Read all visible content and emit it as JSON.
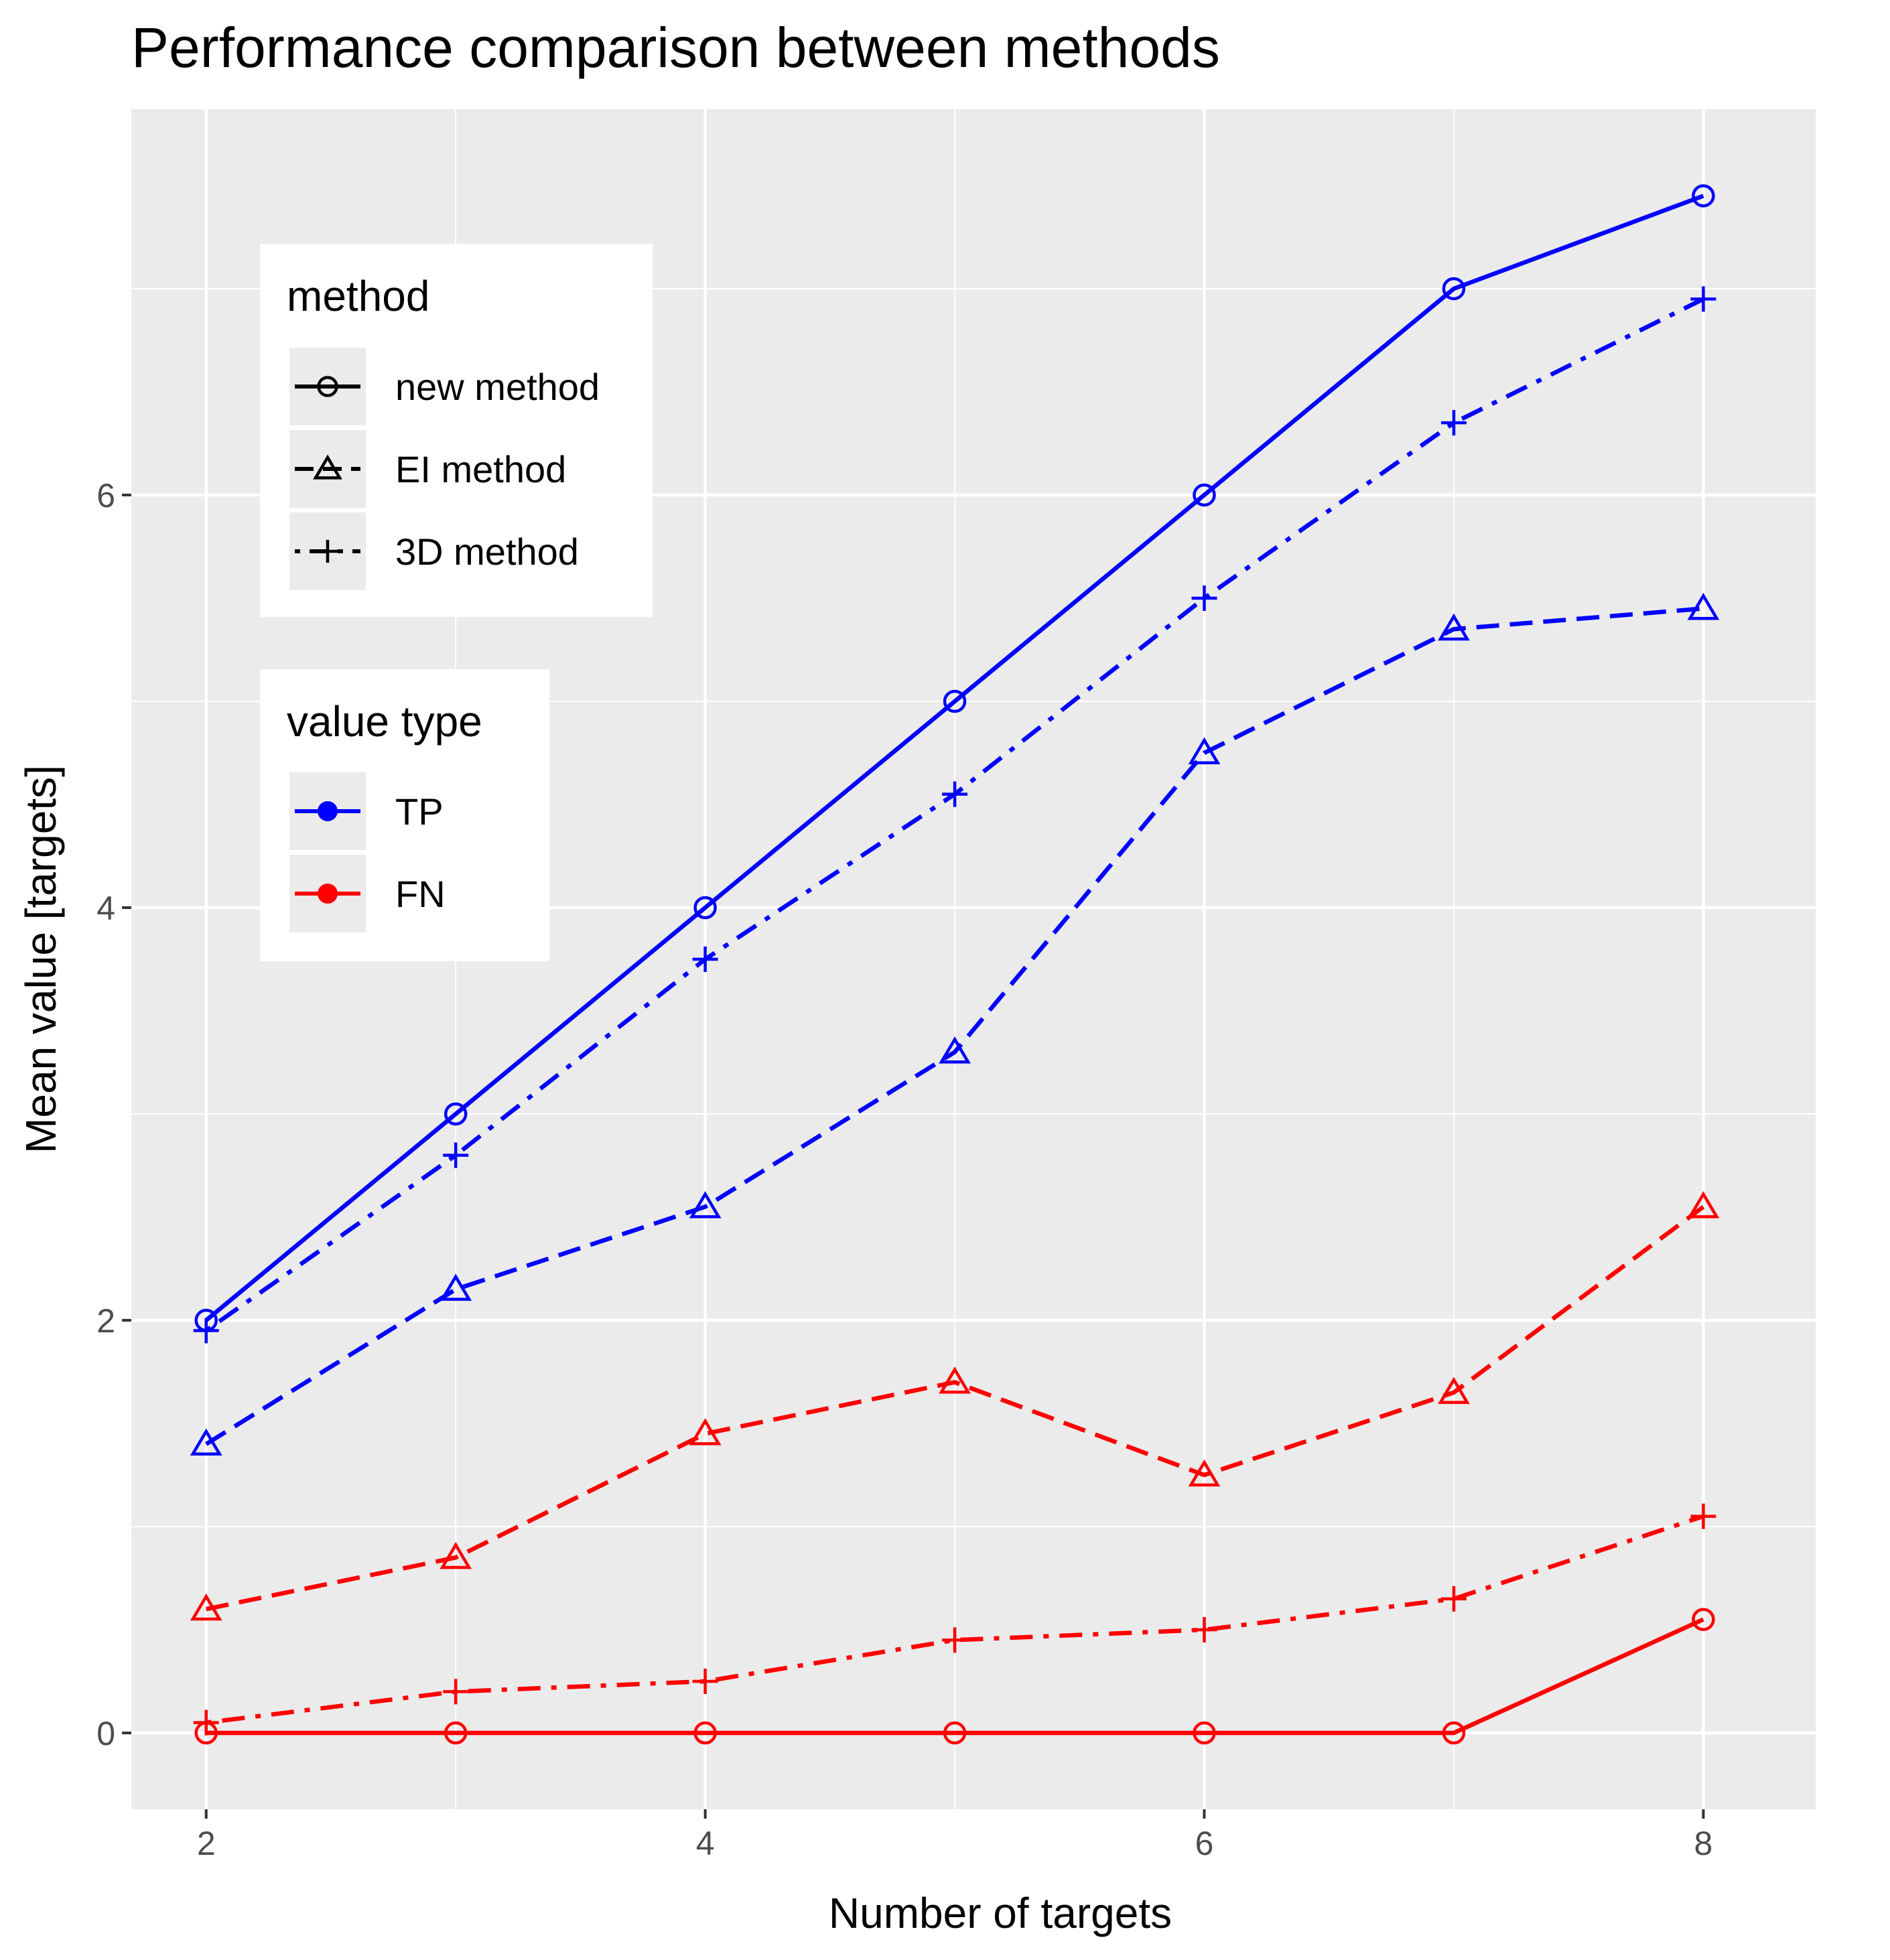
{
  "chart_data": {
    "type": "line",
    "title": "Performance comparison between methods",
    "xlabel": "Number of targets",
    "ylabel": "Mean value [targets]",
    "x": [
      2,
      3,
      4,
      5,
      6,
      7,
      8
    ],
    "xlim": [
      1.7,
      8.45
    ],
    "ylim": [
      -0.37,
      7.87
    ],
    "xticks": [
      2,
      4,
      6,
      8
    ],
    "yticks": [
      0,
      2,
      4,
      6
    ],
    "grid": true,
    "series": [
      {
        "name": "new method — TP",
        "method": "new method",
        "value_type": "TP",
        "values": [
          2.0,
          3.0,
          4.0,
          5.0,
          6.0,
          7.0,
          7.45
        ]
      },
      {
        "name": "3D method — TP",
        "method": "3D method",
        "value_type": "TP",
        "values": [
          1.95,
          2.8,
          3.75,
          4.55,
          5.5,
          6.35,
          6.95
        ]
      },
      {
        "name": "EI method — TP",
        "method": "EI method",
        "value_type": "TP",
        "values": [
          1.4,
          2.15,
          2.55,
          3.3,
          4.75,
          5.35,
          5.45
        ]
      },
      {
        "name": "EI method — FN",
        "method": "EI method",
        "value_type": "FN",
        "values": [
          0.6,
          0.85,
          1.45,
          1.7,
          1.25,
          1.65,
          2.55
        ]
      },
      {
        "name": "3D method — FN",
        "method": "3D method",
        "value_type": "FN",
        "values": [
          0.05,
          0.2,
          0.25,
          0.45,
          0.5,
          0.65,
          1.05
        ]
      },
      {
        "name": "new method — FN",
        "method": "new method",
        "value_type": "FN",
        "values": [
          0.0,
          0.0,
          0.0,
          0.0,
          0.0,
          0.0,
          0.55
        ]
      }
    ],
    "legends": {
      "method": {
        "title": "method",
        "items": [
          {
            "label": "new method",
            "shape": "circle",
            "dash": "solid"
          },
          {
            "label": "EI method",
            "shape": "triangle",
            "dash": "dashed"
          },
          {
            "label": "3D method",
            "shape": "plus",
            "dash": "dotdash"
          }
        ]
      },
      "value_type": {
        "title": "value type",
        "items": [
          {
            "label": "TP",
            "color": "#0000ff"
          },
          {
            "label": "FN",
            "color": "#ff0000"
          }
        ]
      }
    },
    "legend_position": "top-left, inside plot"
  },
  "colors": {
    "panel_background": "#ebebeb",
    "grid": "#ffffff",
    "tp": "#0000ff",
    "fn": "#ff0000"
  }
}
